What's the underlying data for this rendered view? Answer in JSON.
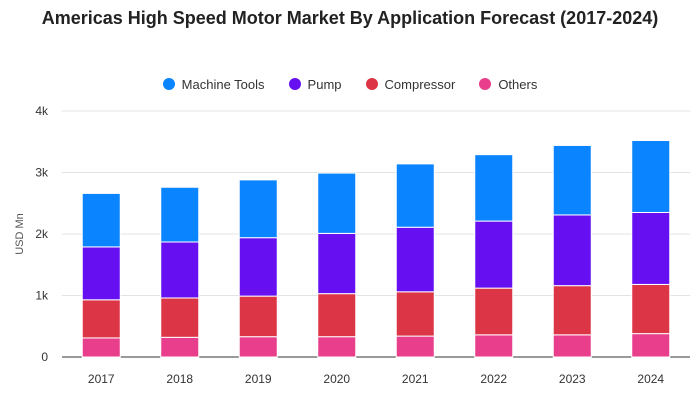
{
  "chart_data": {
    "type": "bar",
    "stacked": true,
    "title": "Americas High Speed Motor Market By Application Forecast (2017-2024)",
    "ylabel": "USD Mn",
    "xlabel": "",
    "categories": [
      "2017",
      "2018",
      "2019",
      "2020",
      "2021",
      "2022",
      "2023",
      "2024"
    ],
    "yticks": [
      {
        "value": 0,
        "label": "0"
      },
      {
        "value": 1000,
        "label": "1k"
      },
      {
        "value": 2000,
        "label": "2k"
      },
      {
        "value": 3000,
        "label": "3k"
      },
      {
        "value": 4000,
        "label": "4k"
      }
    ],
    "ylim": [
      0,
      4000
    ],
    "grid": true,
    "legend_position": "top",
    "series": [
      {
        "name": "Others",
        "color": "#e83e8c",
        "values": [
          310,
          320,
          330,
          330,
          340,
          360,
          360,
          380
        ]
      },
      {
        "name": "Compressor",
        "color": "#dc3545",
        "values": [
          620,
          640,
          660,
          700,
          720,
          760,
          800,
          800
        ]
      },
      {
        "name": "Pump",
        "color": "#6610f2",
        "values": [
          860,
          910,
          950,
          980,
          1050,
          1090,
          1150,
          1170
        ]
      },
      {
        "name": "Machine Tools",
        "color": "#0b84ff",
        "values": [
          870,
          890,
          940,
          980,
          1030,
          1080,
          1130,
          1170
        ]
      }
    ]
  },
  "legend": [
    {
      "label": "Machine Tools",
      "color": "#0b84ff"
    },
    {
      "label": "Pump",
      "color": "#6610f2"
    },
    {
      "label": "Compressor",
      "color": "#dc3545"
    },
    {
      "label": "Others",
      "color": "#e83e8c"
    }
  ]
}
